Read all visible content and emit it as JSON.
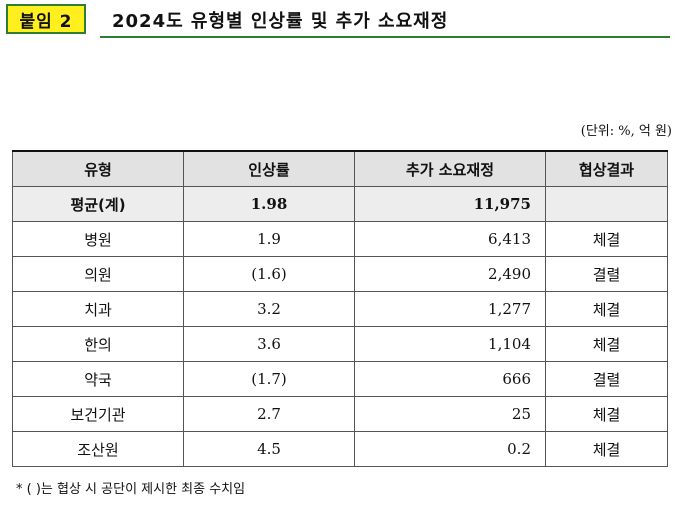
{
  "header": {
    "badge": "붙임 2",
    "title": "2024도 유형별 인상률 및 추가 소요재정"
  },
  "unit_note": "(단위: %, 억 원)",
  "table": {
    "columns": [
      "유형",
      "인상률",
      "추가 소요재정",
      "협상결과"
    ],
    "average": {
      "type": "평균(계)",
      "rate": "1.98",
      "finance": "11,975",
      "result": ""
    },
    "rows": [
      {
        "type": "병원",
        "rate": "1.9",
        "finance": "6,413",
        "result": "체결"
      },
      {
        "type": "의원",
        "rate": "(1.6)",
        "finance": "2,490",
        "result": "결렬"
      },
      {
        "type": "치과",
        "rate": "3.2",
        "finance": "1,277",
        "result": "체결"
      },
      {
        "type": "한의",
        "rate": "3.6",
        "finance": "1,104",
        "result": "체결"
      },
      {
        "type": "약국",
        "rate": "(1.7)",
        "finance": "666",
        "result": "결렬"
      },
      {
        "type": "보건기관",
        "rate": "2.7",
        "finance": "25",
        "result": "체결"
      },
      {
        "type": "조산원",
        "rate": "4.5",
        "finance": "0.2",
        "result": "체결"
      }
    ]
  },
  "footnote": "* (   )는 협상 시 공단이 제시한 최종 수치임"
}
